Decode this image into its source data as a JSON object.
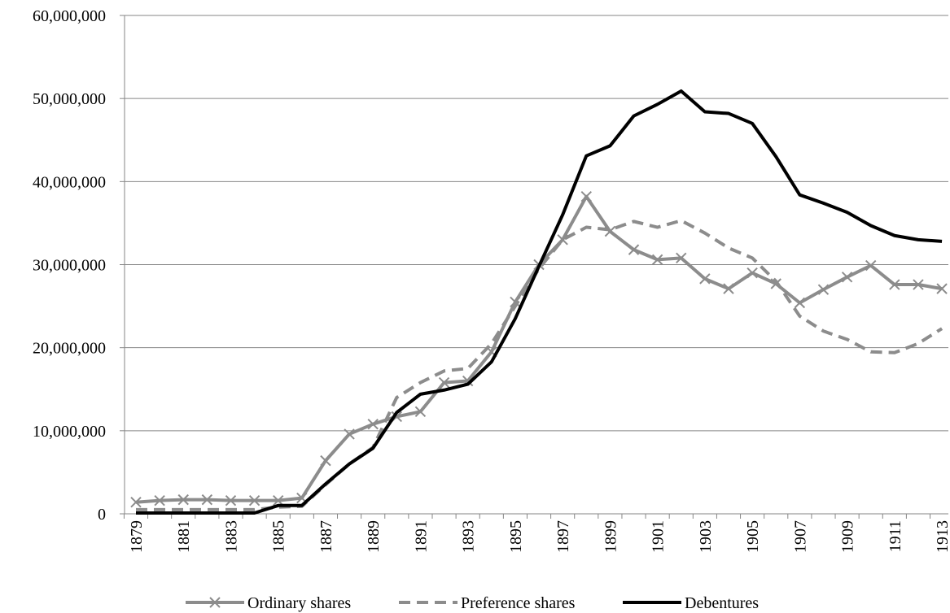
{
  "chart_data": {
    "type": "line",
    "categories": [
      "1879",
      null,
      "1881",
      null,
      "1883",
      null,
      "1885",
      null,
      "1887",
      null,
      "1889",
      null,
      "1891",
      null,
      "1893",
      null,
      "1895",
      null,
      "1897",
      null,
      "1899",
      null,
      "1901",
      null,
      "1903",
      null,
      "1905",
      null,
      "1907",
      null,
      "1909",
      null,
      "1911",
      null,
      "1913"
    ],
    "series": [
      {
        "name": "Ordinary shares",
        "color": "#8c8c8c",
        "line_style": "solid",
        "marker": "x",
        "values": [
          1400000,
          1600000,
          1700000,
          1700000,
          1600000,
          1600000,
          1600000,
          1900000,
          6400000,
          9600000,
          10800000,
          11700000,
          12300000,
          15800000,
          16000000,
          19500000,
          25500000,
          30000000,
          33000000,
          38200000,
          34000000,
          31800000,
          30600000,
          30800000,
          28300000,
          27100000,
          29000000,
          27700000,
          25400000,
          27000000,
          28500000,
          29900000,
          27600000,
          27600000,
          27100000
        ]
      },
      {
        "name": "Preference shares",
        "color": "#8c8c8c",
        "line_style": "dashed",
        "marker": null,
        "values": [
          500000,
          500000,
          500000,
          500000,
          500000,
          500000,
          800000,
          900000,
          3500000,
          6000000,
          8000000,
          14000000,
          15800000,
          17200000,
          17500000,
          20500000,
          25000000,
          29500000,
          33000000,
          34500000,
          34200000,
          35200000,
          34500000,
          35300000,
          33800000,
          32000000,
          30800000,
          28000000,
          23800000,
          22000000,
          21000000,
          19500000,
          19400000,
          20500000,
          22300000
        ]
      },
      {
        "name": "Debentures",
        "color": "#000000",
        "line_style": "solid",
        "marker": null,
        "values": [
          100000,
          100000,
          100000,
          100000,
          100000,
          100000,
          1000000,
          1000000,
          3600000,
          6000000,
          7900000,
          12200000,
          14400000,
          14900000,
          15600000,
          18300000,
          23500000,
          29800000,
          36000000,
          43100000,
          44300000,
          47900000,
          49300000,
          50900000,
          48400000,
          48200000,
          47000000,
          43000000,
          38400000,
          37400000,
          36300000,
          34700000,
          33500000,
          33000000,
          32800000
        ]
      }
    ],
    "ylim": [
      0,
      60000000
    ],
    "yticks": [
      0,
      {
        "value": 10000000,
        "label": "10,000,000"
      },
      {
        "value": 20000000,
        "label": "20,000,000"
      },
      {
        "value": 30000000,
        "label": "30,000,000"
      },
      {
        "value": 40000000,
        "label": "40,000,000"
      },
      {
        "value": 50000000,
        "label": "50,000,000"
      },
      {
        "value": 60000000,
        "label": "60,000,000"
      }
    ],
    "grid": true,
    "legend": "bottom"
  }
}
